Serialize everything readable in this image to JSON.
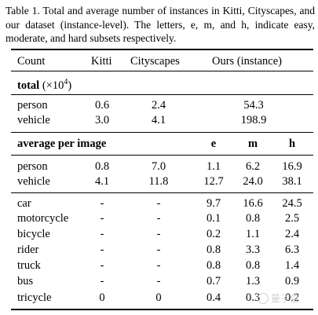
{
  "caption": "Table 1. Total and average number of instances in Kitti, Cityscapes, and our dataset (instance-level). The letters, e, m, and h, indicate easy, moderate, and hard subsets respectively.",
  "header": {
    "col1": "Count",
    "col2": "Kitti",
    "col3": "Cityscapes",
    "col4": "Ours (instance)"
  },
  "total_section": {
    "label": "total",
    "unit_open": "(×10",
    "unit_exp": "4",
    "unit_close": ")",
    "rows": [
      {
        "label": "person",
        "kitti": "0.6",
        "cityscapes": "2.4",
        "ours": "54.3"
      },
      {
        "label": "vehicle",
        "kitti": "3.0",
        "cityscapes": "4.1",
        "ours": "198.9"
      }
    ]
  },
  "average_section": {
    "label": "average per image",
    "e": "e",
    "m": "m",
    "h": "h",
    "rows": [
      {
        "label": "person",
        "kitti": "0.8",
        "cityscapes": "7.0",
        "e": "1.1",
        "m": "6.2",
        "h": "16.9"
      },
      {
        "label": "vehicle",
        "kitti": "4.1",
        "cityscapes": "11.8",
        "e": "12.7",
        "m": "24.0",
        "h": "38.1"
      }
    ]
  },
  "class_rows": [
    {
      "label": "car",
      "kitti": "-",
      "cityscapes": "-",
      "e": "9.7",
      "m": "16.6",
      "h": "24.5"
    },
    {
      "label": "motorcycle",
      "kitti": "-",
      "cityscapes": "-",
      "e": "0.1",
      "m": "0.8",
      "h": "2.5"
    },
    {
      "label": "bicycle",
      "kitti": "-",
      "cityscapes": "-",
      "e": "0.2",
      "m": "1.1",
      "h": "2.4"
    },
    {
      "label": "rider",
      "kitti": "-",
      "cityscapes": "-",
      "e": "0.8",
      "m": "3.3",
      "h": "6.3"
    },
    {
      "label": "truck",
      "kitti": "-",
      "cityscapes": "-",
      "e": "0.8",
      "m": "0.8",
      "h": "1.4"
    },
    {
      "label": "bus",
      "kitti": "-",
      "cityscapes": "-",
      "e": "0.7",
      "m": "1.3",
      "h": "0.9"
    },
    {
      "label": "tricycle",
      "kitti": "0",
      "cityscapes": "0",
      "e": "0.4",
      "m": "0.3",
      "h": "0.2"
    }
  ],
  "watermark": "量子位"
}
